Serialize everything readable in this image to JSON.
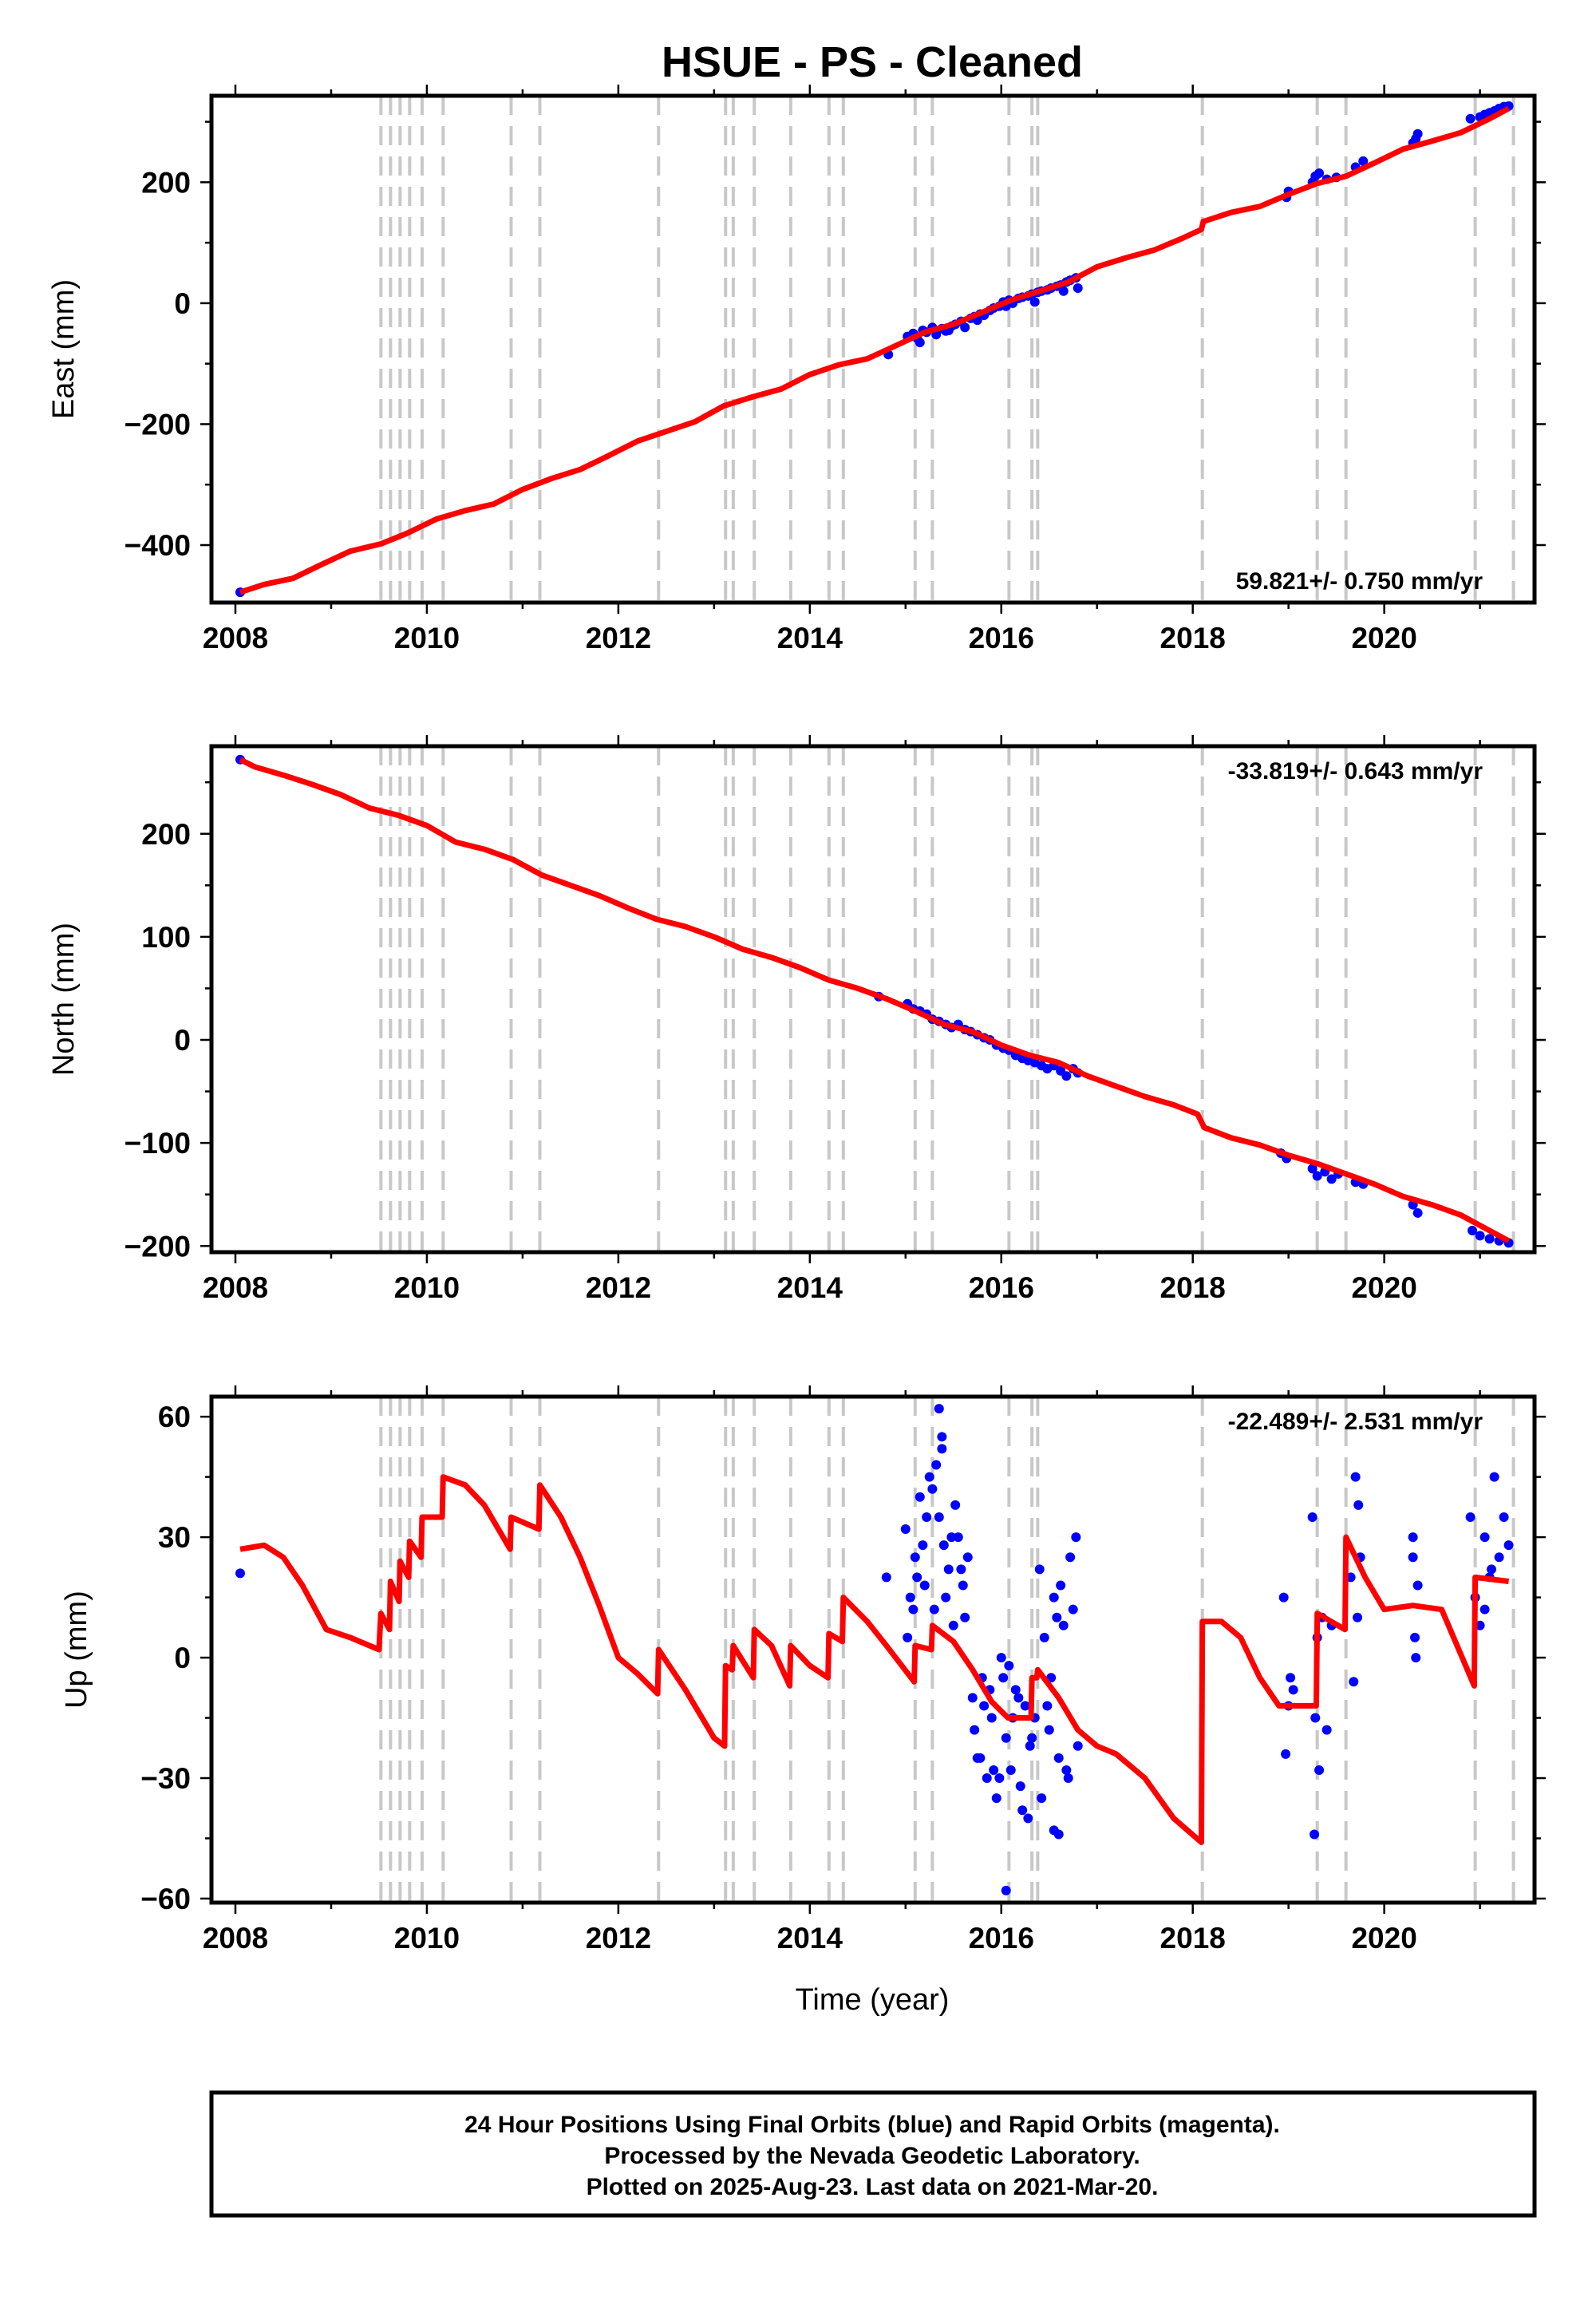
{
  "title": "HSUE  - PS - Cleaned",
  "xlabel": "Time (year)",
  "footer": {
    "line1": "24 Hour Positions Using Final Orbits (blue) and Rapid Orbits (magenta).",
    "line2": "Processed by the Nevada Geodetic Laboratory.",
    "line3": "Plotted on 2025-Aug-23. Last data on 2021-Mar-20."
  },
  "colors": {
    "final_orbit_points": "#0000ff",
    "model": "#ff0000",
    "event_lines": "#c8c8c8"
  },
  "chart_data": [
    {
      "type": "scatter",
      "name": "east",
      "ylabel": "East (mm)",
      "rate_label": "59.821+/- 0.750 mm/yr",
      "rate_label_position": "bottom-right",
      "xlim": [
        2007.75,
        2021.57
      ],
      "ylim": [
        -495,
        343
      ],
      "xticks": [
        2008,
        2010,
        2012,
        2014,
        2016,
        2018,
        2020
      ],
      "xtick_labels": [
        "2008",
        "2010",
        "2012",
        "2014",
        "2016",
        "2018",
        "2020"
      ],
      "yticks": [
        -400,
        -200,
        0,
        200
      ],
      "ytick_labels": [
        "−400",
        "−200",
        "0",
        "200"
      ],
      "event_lines": [
        2009.52,
        2009.62,
        2009.72,
        2009.82,
        2009.95,
        2010.17,
        2010.88,
        2011.18,
        2012.42,
        2013.12,
        2013.2,
        2013.42,
        2013.8,
        2014.2,
        2014.35,
        2015.1,
        2015.28,
        2016.08,
        2016.32,
        2016.38,
        2018.1,
        2019.3,
        2019.6,
        2020.95,
        2021.35
      ],
      "model": {
        "x": [
          2008.05,
          2008.3,
          2008.6,
          2008.9,
          2009.2,
          2009.52,
          2009.8,
          2010.1,
          2010.4,
          2010.7,
          2011.0,
          2011.3,
          2011.6,
          2011.9,
          2012.2,
          2012.5,
          2012.8,
          2013.1,
          2013.4,
          2013.7,
          2014.0,
          2014.3,
          2014.6,
          2014.9,
          2015.2,
          2015.5,
          2015.8,
          2016.1,
          2016.4,
          2016.7,
          2017.0,
          2017.3,
          2017.6,
          2017.9,
          2018.09,
          2018.11,
          2018.4,
          2018.7,
          2019.0,
          2019.3,
          2019.6,
          2019.9,
          2020.2,
          2020.5,
          2020.8,
          2021.1,
          2021.3
        ],
        "y": [
          -478,
          -465,
          -455,
          -432,
          -410,
          -398,
          -380,
          -357,
          -343,
          -332,
          -308,
          -290,
          -275,
          -252,
          -228,
          -212,
          -196,
          -170,
          -155,
          -142,
          -118,
          -102,
          -92,
          -70,
          -48,
          -35,
          -15,
          5,
          20,
          35,
          60,
          75,
          88,
          108,
          122,
          135,
          150,
          160,
          180,
          198,
          210,
          232,
          255,
          268,
          282,
          305,
          322
        ]
      },
      "points": {
        "x": [
          2008.05,
          2014.82,
          2015.02,
          2015.08,
          2015.12,
          2015.18,
          2015.22,
          2015.28,
          2015.32,
          2015.38,
          2015.42,
          2015.48,
          2015.52,
          2015.58,
          2015.62,
          2015.68,
          2015.72,
          2015.78,
          2015.82,
          2015.88,
          2015.92,
          2015.98,
          2016.02,
          2016.08,
          2016.12,
          2016.18,
          2016.22,
          2016.28,
          2016.32,
          2016.38,
          2016.42,
          2016.48,
          2016.52,
          2016.58,
          2016.62,
          2016.68,
          2016.72,
          2016.78,
          2015.15,
          2015.45,
          2015.75,
          2016.05,
          2016.35,
          2016.65,
          2016.8,
          2018.98,
          2019.0,
          2019.25,
          2019.28,
          2019.32,
          2019.4,
          2019.5,
          2019.7,
          2019.78,
          2020.3,
          2020.33,
          2020.35,
          2020.9,
          2021.0,
          2021.05,
          2021.1,
          2021.15,
          2021.2,
          2021.25,
          2021.3
        ],
        "y": [
          -478,
          -85,
          -55,
          -50,
          -58,
          -45,
          -48,
          -40,
          -52,
          -42,
          -46,
          -38,
          -35,
          -30,
          -40,
          -25,
          -22,
          -18,
          -20,
          -12,
          -8,
          -5,
          2,
          5,
          0,
          8,
          10,
          12,
          15,
          18,
          20,
          22,
          25,
          28,
          30,
          35,
          38,
          42,
          -65,
          -45,
          -28,
          -5,
          2,
          20,
          25,
          175,
          185,
          200,
          210,
          215,
          205,
          208,
          225,
          235,
          265,
          272,
          280,
          305,
          308,
          312,
          315,
          318,
          322,
          325,
          326
        ]
      }
    },
    {
      "type": "scatter",
      "name": "north",
      "ylabel": "North (mm)",
      "rate_label": "-33.819+/- 0.643 mm/yr",
      "rate_label_position": "top-right",
      "xlim": [
        2007.75,
        2021.57
      ],
      "ylim": [
        -206,
        285
      ],
      "xticks": [
        2008,
        2010,
        2012,
        2014,
        2016,
        2018,
        2020
      ],
      "xtick_labels": [
        "2008",
        "2010",
        "2012",
        "2014",
        "2016",
        "2018",
        "2020"
      ],
      "yticks": [
        -200,
        -100,
        0,
        100,
        200
      ],
      "ytick_labels": [
        "−200",
        "−100",
        "0",
        "100",
        "200"
      ],
      "event_lines": [
        2009.52,
        2009.62,
        2009.72,
        2009.82,
        2009.95,
        2010.17,
        2010.88,
        2011.18,
        2012.42,
        2013.12,
        2013.2,
        2013.42,
        2013.8,
        2014.2,
        2014.35,
        2015.1,
        2015.28,
        2016.08,
        2016.32,
        2016.38,
        2018.1,
        2019.3,
        2019.6,
        2020.95,
        2021.35
      ],
      "model": {
        "x": [
          2008.05,
          2008.2,
          2008.5,
          2008.8,
          2009.1,
          2009.4,
          2009.7,
          2010.0,
          2010.3,
          2010.6,
          2010.9,
          2011.2,
          2011.5,
          2011.8,
          2012.1,
          2012.4,
          2012.7,
          2013.0,
          2013.3,
          2013.6,
          2013.9,
          2014.2,
          2014.5,
          2014.8,
          2015.1,
          2015.4,
          2015.7,
          2016.0,
          2016.3,
          2016.6,
          2016.9,
          2017.2,
          2017.5,
          2017.8,
          2018.05,
          2018.12,
          2018.4,
          2018.7,
          2019.0,
          2019.3,
          2019.6,
          2019.9,
          2020.2,
          2020.5,
          2020.8,
          2021.1,
          2021.3
        ],
        "y": [
          272,
          265,
          257,
          248,
          238,
          225,
          218,
          208,
          192,
          185,
          175,
          160,
          150,
          140,
          128,
          117,
          110,
          100,
          88,
          80,
          70,
          58,
          50,
          40,
          28,
          15,
          8,
          -5,
          -15,
          -22,
          -35,
          -45,
          -55,
          -63,
          -72,
          -85,
          -95,
          -102,
          -112,
          -120,
          -130,
          -140,
          -152,
          -160,
          -170,
          -185,
          -195
        ]
      },
      "points": {
        "x": [
          2008.05,
          2014.72,
          2015.02,
          2015.08,
          2015.15,
          2015.22,
          2015.28,
          2015.35,
          2015.42,
          2015.48,
          2015.55,
          2015.62,
          2015.68,
          2015.75,
          2015.82,
          2015.88,
          2015.95,
          2016.02,
          2016.08,
          2016.15,
          2016.22,
          2016.28,
          2016.35,
          2016.42,
          2016.48,
          2016.55,
          2016.62,
          2016.68,
          2016.75,
          2016.8,
          2018.92,
          2018.98,
          2019.25,
          2019.3,
          2019.38,
          2019.45,
          2019.52,
          2019.7,
          2019.78,
          2020.3,
          2020.35,
          2020.92,
          2021.0,
          2021.1,
          2021.2,
          2021.3
        ],
        "y": [
          272,
          42,
          35,
          30,
          28,
          25,
          20,
          18,
          15,
          12,
          15,
          10,
          8,
          5,
          2,
          0,
          -5,
          -8,
          -10,
          -15,
          -18,
          -20,
          -22,
          -25,
          -28,
          -25,
          -30,
          -35,
          -28,
          -32,
          -110,
          -115,
          -125,
          -132,
          -128,
          -135,
          -130,
          -138,
          -140,
          -160,
          -168,
          -185,
          -190,
          -193,
          -195,
          -197
        ]
      }
    },
    {
      "type": "scatter",
      "name": "up",
      "ylabel": "Up (mm)",
      "rate_label": "-22.489+/- 2.531 mm/yr",
      "rate_label_position": "top-right",
      "xlim": [
        2007.75,
        2021.57
      ],
      "ylim": [
        -61,
        65
      ],
      "xticks": [
        2008,
        2010,
        2012,
        2014,
        2016,
        2018,
        2020
      ],
      "xtick_labels": [
        "2008",
        "2010",
        "2012",
        "2014",
        "2016",
        "2018",
        "2020"
      ],
      "yticks": [
        -60,
        -30,
        0,
        30,
        60
      ],
      "ytick_labels": [
        "−60",
        "−30",
        "0",
        "30",
        "60"
      ],
      "event_lines": [
        2009.52,
        2009.62,
        2009.72,
        2009.82,
        2009.95,
        2010.17,
        2010.88,
        2011.18,
        2012.42,
        2013.12,
        2013.2,
        2013.42,
        2013.8,
        2014.2,
        2014.35,
        2015.1,
        2015.28,
        2016.08,
        2016.32,
        2016.38,
        2018.1,
        2019.3,
        2019.6,
        2020.95,
        2021.35
      ],
      "model": {
        "x": [
          2008.05,
          2008.3,
          2008.5,
          2008.7,
          2008.95,
          2009.2,
          2009.5,
          2009.52,
          2009.61,
          2009.62,
          2009.71,
          2009.72,
          2009.81,
          2009.82,
          2009.94,
          2009.95,
          2010.16,
          2010.17,
          2010.4,
          2010.6,
          2010.87,
          2010.88,
          2011.17,
          2011.18,
          2011.4,
          2011.6,
          2011.8,
          2012.0,
          2012.2,
          2012.41,
          2012.42,
          2012.7,
          2013.0,
          2013.11,
          2013.12,
          2013.19,
          2013.2,
          2013.41,
          2013.42,
          2013.6,
          2013.79,
          2013.8,
          2014.0,
          2014.19,
          2014.2,
          2014.34,
          2014.35,
          2014.6,
          2014.8,
          2015.09,
          2015.1,
          2015.27,
          2015.28,
          2015.5,
          2015.7,
          2015.9,
          2016.07,
          2016.08,
          2016.31,
          2016.32,
          2016.37,
          2016.38,
          2016.6,
          2016.8,
          2017.0,
          2017.2,
          2017.5,
          2017.8,
          2018.09,
          2018.1,
          2018.3,
          2018.5,
          2018.7,
          2018.9,
          2019.29,
          2019.3,
          2019.59,
          2019.6,
          2019.8,
          2020.0,
          2020.3,
          2020.6,
          2020.94,
          2020.95,
          2021.3
        ],
        "y": [
          27,
          28,
          25,
          18,
          7,
          5,
          2,
          11,
          7,
          19,
          14,
          24,
          20,
          29,
          25,
          35,
          35,
          45,
          43,
          38,
          27,
          35,
          32,
          43,
          35,
          25,
          13,
          0,
          -4,
          -9,
          2,
          -8,
          -20,
          -22,
          -2,
          -3,
          3,
          -5,
          7,
          3,
          -7,
          3,
          -2,
          -5,
          6,
          4,
          15,
          9,
          3,
          -6,
          3,
          2,
          8,
          4,
          -3,
          -11,
          -15,
          -15,
          -15,
          -5,
          -5,
          -3,
          -10,
          -18,
          -22,
          -24,
          -30,
          -40,
          -46,
          9,
          9,
          5,
          -5,
          -12,
          -12,
          11,
          7,
          30,
          20,
          12,
          13,
          12,
          -7,
          20,
          19
        ]
      },
      "points": {
        "x": [
          2008.05,
          2014.8,
          2015.0,
          2015.05,
          2015.1,
          2015.15,
          2015.2,
          2015.25,
          2015.3,
          2015.35,
          2015.4,
          2015.45,
          2015.5,
          2015.55,
          2015.6,
          2015.65,
          2015.02,
          2015.12,
          2015.22,
          2015.32,
          2015.42,
          2015.52,
          2015.62,
          2015.08,
          2015.18,
          2015.28,
          2015.38,
          2015.48,
          2015.58,
          2015.35,
          2015.38,
          2015.7,
          2015.75,
          2015.8,
          2015.85,
          2015.9,
          2015.95,
          2016.0,
          2016.05,
          2016.1,
          2016.15,
          2016.2,
          2016.25,
          2016.3,
          2015.72,
          2015.82,
          2015.92,
          2016.02,
          2016.12,
          2016.22,
          2016.32,
          2015.78,
          2015.88,
          2015.98,
          2016.08,
          2016.18,
          2016.28,
          2016.35,
          2016.4,
          2016.45,
          2016.5,
          2016.55,
          2016.6,
          2016.65,
          2016.7,
          2016.75,
          2016.8,
          2016.42,
          2016.52,
          2016.62,
          2016.72,
          2016.48,
          2016.58,
          2016.68,
          2016.78,
          2016.05,
          2016.55,
          2016.6,
          2018.95,
          2019.0,
          2019.02,
          2019.05,
          2018.97,
          2019.25,
          2019.28,
          2019.3,
          2019.32,
          2019.35,
          2019.4,
          2019.45,
          2019.27,
          2019.65,
          2019.7,
          2019.72,
          2019.75,
          2019.68,
          2019.73,
          2020.3,
          2020.32,
          2020.35,
          2020.3,
          2020.33,
          2020.9,
          2020.95,
          2021.0,
          2021.05,
          2021.1,
          2021.15,
          2021.2,
          2021.25,
          2021.3,
          2021.05,
          2021.12
        ],
        "y": [
          21,
          20,
          32,
          15,
          25,
          40,
          18,
          45,
          12,
          35,
          28,
          22,
          8,
          30,
          18,
          25,
          5,
          20,
          35,
          48,
          15,
          38,
          10,
          12,
          28,
          42,
          55,
          30,
          22,
          62,
          52,
          -10,
          -25,
          -5,
          -30,
          -15,
          -35,
          0,
          -20,
          -28,
          -8,
          -32,
          -12,
          -22,
          -18,
          -12,
          -28,
          -5,
          -15,
          -38,
          -20,
          -25,
          -8,
          -30,
          -2,
          -10,
          -40,
          -15,
          22,
          5,
          -18,
          15,
          -25,
          8,
          -30,
          12,
          -22,
          -35,
          -5,
          18,
          25,
          -12,
          10,
          -28,
          30,
          -58,
          -43,
          -44,
          15,
          -12,
          -5,
          -8,
          -24,
          35,
          -15,
          5,
          -28,
          10,
          -18,
          8,
          -44,
          20,
          45,
          10,
          25,
          -6,
          38,
          30,
          5,
          18,
          25,
          0,
          35,
          15,
          8,
          30,
          20,
          45,
          25,
          35,
          28,
          12,
          22
        ]
      }
    }
  ]
}
